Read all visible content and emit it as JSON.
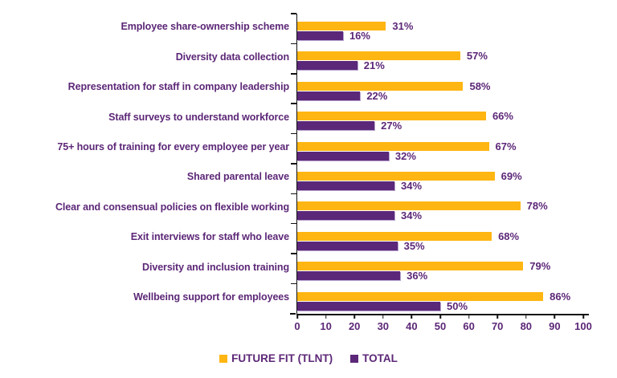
{
  "colors": {
    "future_fit": "#FFB612",
    "total": "#5B2779",
    "total_highlight": "#B6A2CD",
    "text": "#5C2777",
    "axis": "#111111"
  },
  "chart_data": {
    "type": "bar",
    "orientation": "horizontal",
    "title": "",
    "xlabel": "",
    "ylabel": "",
    "xlim": [
      0,
      100
    ],
    "x_ticks": [
      0,
      10,
      20,
      30,
      40,
      50,
      60,
      70,
      80,
      90,
      100
    ],
    "grid": false,
    "legend_position": "bottom",
    "value_suffix": "%",
    "categories": [
      "Employee share-ownership scheme",
      "Diversity data collection",
      "Representation for staff in company leadership",
      "Staff surveys to understand workforce",
      "75+ hours of training for every employee per year",
      "Shared parental leave",
      "Clear and consensual policies on flexible working",
      "Exit interviews for staff who leave",
      "Diversity and inclusion training",
      "Wellbeing support for employees"
    ],
    "series": [
      {
        "name": "FUTURE FIT (TLNT)",
        "color": "#FFB612",
        "values": [
          31,
          57,
          58,
          66,
          67,
          69,
          78,
          68,
          79,
          86
        ]
      },
      {
        "name": "TOTAL",
        "color": "#5B2779",
        "values": [
          16,
          21,
          22,
          27,
          32,
          34,
          34,
          35,
          36,
          50
        ]
      }
    ]
  }
}
